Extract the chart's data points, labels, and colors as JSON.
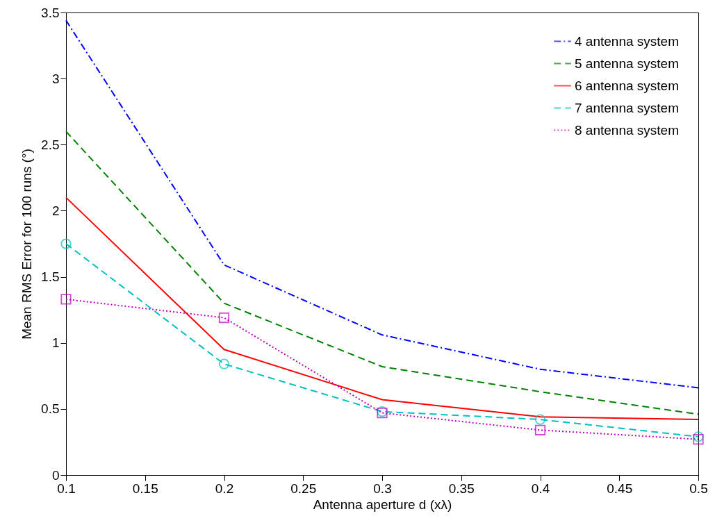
{
  "chart_data": {
    "type": "line",
    "xlabel": "Antenna aperture d (xλ)",
    "ylabel": "Mean RMS Error for 100 runs (°)",
    "x": [
      0.1,
      0.2,
      0.3,
      0.4,
      0.5
    ],
    "series": [
      {
        "name": "4 antenna system",
        "color": "#0000ff",
        "line_style": "dashdot",
        "values": [
          3.44,
          1.59,
          1.06,
          0.8,
          0.66
        ]
      },
      {
        "name": "5 antenna system",
        "color": "#008000",
        "line_style": "dashed",
        "values": [
          2.6,
          1.3,
          0.82,
          0.63,
          0.46
        ]
      },
      {
        "name": "6 antenna system",
        "color": "#ff0000",
        "line_style": "solid",
        "values": [
          2.1,
          0.95,
          0.57,
          0.44,
          0.42
        ]
      },
      {
        "name": "7 antenna system",
        "color": "#00bfbf",
        "line_style": "dashed",
        "marker": "circle",
        "values": [
          1.75,
          0.84,
          0.48,
          0.42,
          0.29
        ]
      },
      {
        "name": "8 antenna system",
        "color": "#bf00bf",
        "line_style": "dotted",
        "marker": "square",
        "values": [
          1.33,
          1.19,
          0.47,
          0.34,
          0.27
        ]
      }
    ],
    "xlim": [
      0.1,
      0.5
    ],
    "xticks": [
      0.1,
      0.15,
      0.2,
      0.25,
      0.3,
      0.35,
      0.4,
      0.45,
      0.5
    ],
    "ylim": [
      0,
      3.5
    ],
    "yticks": [
      0,
      0.5,
      1,
      1.5,
      2,
      2.5,
      3,
      3.5
    ],
    "legend": "top right"
  }
}
